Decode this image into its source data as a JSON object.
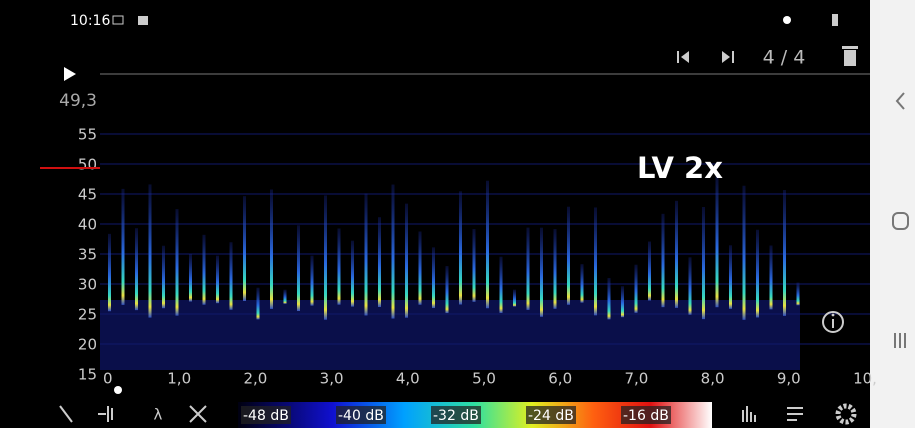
{
  "status_bar": {
    "time": "10:16"
  },
  "player": {
    "counter": "4 / 4",
    "cursor_frequency": "49,3"
  },
  "spectrogram": {
    "y_tick_labels": [
      "55",
      "50",
      "45",
      "40",
      "35",
      "30",
      "25",
      "20",
      "15"
    ],
    "x_tick_labels": [
      "0",
      "1,0",
      "2,0",
      "3,0",
      "4,0",
      "5,0",
      "6,0",
      "7,0",
      "8,0",
      "9,0",
      "10,"
    ],
    "annotation": "LV 2x"
  },
  "color_scale": {
    "labels": [
      "-48 dB",
      "-40 dB",
      "-32 dB",
      "-24 dB",
      "-16 dB"
    ]
  }
}
